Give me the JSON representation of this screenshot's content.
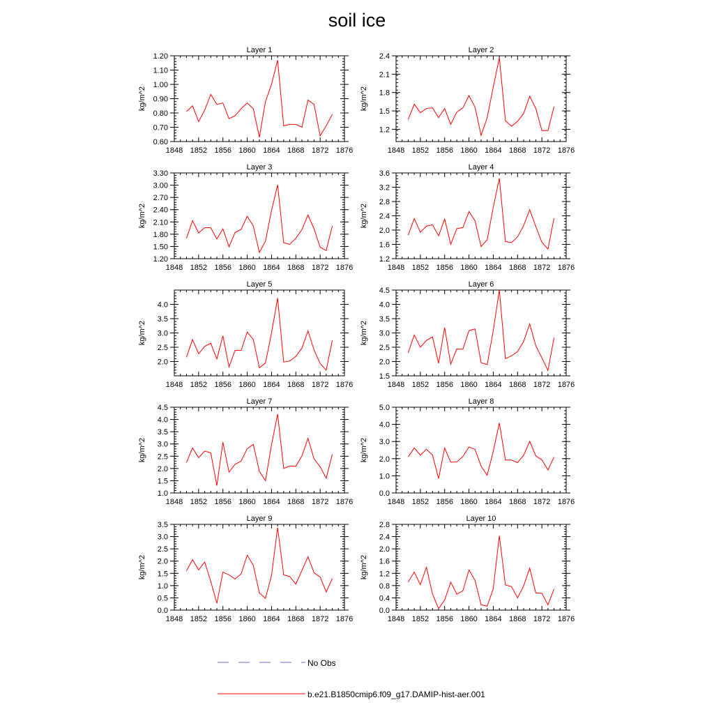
{
  "title": "soil ice",
  "legend": {
    "no_obs_label": "No Obs",
    "model_label": "b.e21.B1850cmip6.f09_g17.DAMIP-hist-aer.001",
    "no_obs_color": "#6a6acd",
    "model_color": "#ff0000"
  },
  "chart_data": [
    {
      "type": "line",
      "title": "Layer 1",
      "ylabel": "kg/m^2",
      "xlim": [
        1848,
        1876
      ],
      "ylim": [
        0.6,
        1.2
      ],
      "xticks": [
        "1848",
        "1852",
        "1856",
        "1860",
        "1864",
        "1868",
        "1872",
        "1876"
      ],
      "yticks": [
        "0.60",
        "0.70",
        "0.80",
        "0.90",
        "1.00",
        "1.10",
        "1.20"
      ],
      "x": [
        1850,
        1851,
        1852,
        1853,
        1854,
        1855,
        1856,
        1857,
        1858,
        1859,
        1860,
        1861,
        1862,
        1863,
        1864,
        1865,
        1866,
        1867,
        1868,
        1869,
        1870,
        1871,
        1872,
        1873,
        1874
      ],
      "series": [
        {
          "values": [
            0.81,
            0.85,
            0.74,
            0.82,
            0.93,
            0.86,
            0.87,
            0.76,
            0.78,
            0.83,
            0.87,
            0.83,
            0.63,
            0.88,
            1.0,
            1.17,
            0.71,
            0.72,
            0.72,
            0.7,
            0.89,
            0.86,
            0.64,
            0.71,
            0.79
          ]
        }
      ]
    },
    {
      "type": "line",
      "title": "Layer 2",
      "ylabel": "kg/m^2",
      "xlim": [
        1848,
        1876
      ],
      "ylim": [
        1.0,
        2.4
      ],
      "xticks": [
        "1848",
        "1852",
        "1856",
        "1860",
        "1864",
        "1868",
        "1872",
        "1876"
      ],
      "yticks": [
        "1.2",
        "1.5",
        "1.8",
        "2.1",
        "2.4"
      ],
      "yticks_values": [
        1.2,
        1.5,
        1.8,
        2.1,
        2.4
      ],
      "x": [
        1850,
        1851,
        1852,
        1853,
        1854,
        1855,
        1856,
        1857,
        1858,
        1859,
        1860,
        1861,
        1862,
        1863,
        1864,
        1865,
        1866,
        1867,
        1868,
        1869,
        1870,
        1871,
        1872,
        1873,
        1874
      ],
      "series": [
        {
          "values": [
            1.36,
            1.61,
            1.47,
            1.54,
            1.55,
            1.39,
            1.54,
            1.28,
            1.48,
            1.55,
            1.75,
            1.56,
            1.1,
            1.39,
            1.89,
            2.37,
            1.34,
            1.25,
            1.33,
            1.46,
            1.74,
            1.54,
            1.18,
            1.18,
            1.57
          ]
        }
      ]
    },
    {
      "type": "line",
      "title": "Layer 3",
      "ylabel": "kg/m^2",
      "xlim": [
        1848,
        1876
      ],
      "ylim": [
        1.2,
        3.3
      ],
      "xticks": [
        "1848",
        "1852",
        "1856",
        "1860",
        "1864",
        "1868",
        "1872",
        "1876"
      ],
      "yticks": [
        "1.20",
        "1.50",
        "1.80",
        "2.10",
        "2.40",
        "2.70",
        "3.00",
        "3.30"
      ],
      "x": [
        1850,
        1851,
        1852,
        1853,
        1854,
        1855,
        1856,
        1857,
        1858,
        1859,
        1860,
        1861,
        1862,
        1863,
        1864,
        1865,
        1866,
        1867,
        1868,
        1869,
        1870,
        1871,
        1872,
        1873,
        1874
      ],
      "series": [
        {
          "values": [
            1.7,
            2.13,
            1.83,
            1.96,
            1.96,
            1.68,
            1.93,
            1.49,
            1.84,
            1.92,
            2.24,
            2.0,
            1.35,
            1.63,
            2.38,
            3.01,
            1.59,
            1.55,
            1.7,
            1.91,
            2.27,
            1.93,
            1.48,
            1.4,
            2.0
          ]
        }
      ]
    },
    {
      "type": "line",
      "title": "Layer 4",
      "ylabel": "kg/m^2",
      "xlim": [
        1848,
        1876
      ],
      "ylim": [
        1.2,
        3.6
      ],
      "xticks": [
        "1848",
        "1852",
        "1856",
        "1860",
        "1864",
        "1868",
        "1872",
        "1876"
      ],
      "yticks": [
        "1.2",
        "1.6",
        "2.0",
        "2.4",
        "2.8",
        "3.2",
        "3.6"
      ],
      "x": [
        1850,
        1851,
        1852,
        1853,
        1854,
        1855,
        1856,
        1857,
        1858,
        1859,
        1860,
        1861,
        1862,
        1863,
        1864,
        1865,
        1866,
        1867,
        1868,
        1869,
        1870,
        1871,
        1872,
        1873,
        1874
      ],
      "series": [
        {
          "values": [
            1.86,
            2.32,
            1.94,
            2.11,
            2.15,
            1.84,
            2.31,
            1.6,
            2.04,
            2.07,
            2.52,
            2.26,
            1.54,
            1.73,
            2.64,
            3.45,
            1.68,
            1.65,
            1.81,
            2.13,
            2.57,
            2.1,
            1.66,
            1.47,
            2.33
          ]
        }
      ]
    },
    {
      "type": "line",
      "title": "Layer 5",
      "ylabel": "kg/m^2",
      "xlim": [
        1848,
        1876
      ],
      "ylim": [
        1.5,
        4.5
      ],
      "xticks": [
        "1848",
        "1852",
        "1856",
        "1860",
        "1864",
        "1868",
        "1872",
        "1876"
      ],
      "yticks": [
        "2.0",
        "2.5",
        "3.0",
        "3.5",
        "4.0"
      ],
      "yticks_values": [
        2.0,
        2.5,
        3.0,
        3.5,
        4.0
      ],
      "x": [
        1850,
        1851,
        1852,
        1853,
        1854,
        1855,
        1856,
        1857,
        1858,
        1859,
        1860,
        1861,
        1862,
        1863,
        1864,
        1865,
        1866,
        1867,
        1868,
        1869,
        1870,
        1871,
        1872,
        1873,
        1874
      ],
      "series": [
        {
          "values": [
            2.15,
            2.77,
            2.27,
            2.53,
            2.64,
            2.09,
            2.9,
            1.81,
            2.39,
            2.39,
            3.03,
            2.77,
            1.78,
            1.95,
            3.0,
            4.22,
            1.98,
            2.02,
            2.18,
            2.47,
            3.07,
            2.4,
            1.93,
            1.7,
            2.74
          ]
        }
      ]
    },
    {
      "type": "line",
      "title": "Layer 6",
      "ylabel": "kg/m^2",
      "xlim": [
        1848,
        1876
      ],
      "ylim": [
        1.5,
        4.5
      ],
      "xticks": [
        "1848",
        "1852",
        "1856",
        "1860",
        "1864",
        "1868",
        "1872",
        "1876"
      ],
      "yticks": [
        "1.5",
        "2.0",
        "2.5",
        "3.0",
        "3.5",
        "4.0",
        "4.5"
      ],
      "x": [
        1850,
        1851,
        1852,
        1853,
        1854,
        1855,
        1856,
        1857,
        1858,
        1859,
        1860,
        1861,
        1862,
        1863,
        1864,
        1865,
        1866,
        1867,
        1868,
        1869,
        1870,
        1871,
        1872,
        1873,
        1874
      ],
      "series": [
        {
          "values": [
            2.31,
            2.93,
            2.5,
            2.74,
            2.86,
            1.94,
            3.19,
            1.91,
            2.44,
            2.43,
            3.08,
            3.14,
            1.96,
            1.89,
            3.08,
            4.5,
            2.1,
            2.2,
            2.35,
            2.7,
            3.32,
            2.55,
            2.13,
            1.69,
            2.83
          ]
        }
      ]
    },
    {
      "type": "line",
      "title": "Layer 7",
      "ylabel": "kg/m^2",
      "xlim": [
        1848,
        1876
      ],
      "ylim": [
        1.0,
        4.5
      ],
      "xticks": [
        "1848",
        "1852",
        "1856",
        "1860",
        "1864",
        "1868",
        "1872",
        "1876"
      ],
      "yticks": [
        "1.0",
        "1.5",
        "2.0",
        "2.5",
        "3.0",
        "3.5",
        "4.0",
        "4.5"
      ],
      "x": [
        1850,
        1851,
        1852,
        1853,
        1854,
        1855,
        1856,
        1857,
        1858,
        1859,
        1860,
        1861,
        1862,
        1863,
        1864,
        1865,
        1866,
        1867,
        1868,
        1869,
        1870,
        1871,
        1872,
        1873,
        1874
      ],
      "series": [
        {
          "values": [
            2.24,
            2.84,
            2.44,
            2.71,
            2.64,
            1.3,
            3.07,
            1.85,
            2.17,
            2.3,
            2.81,
            2.98,
            1.88,
            1.5,
            2.97,
            4.22,
            2.0,
            2.1,
            2.09,
            2.51,
            3.23,
            2.39,
            2.07,
            1.6,
            2.58
          ]
        }
      ]
    },
    {
      "type": "line",
      "title": "Layer 8",
      "ylabel": "kg/m^2",
      "xlim": [
        1848,
        1876
      ],
      "ylim": [
        0.0,
        5.0
      ],
      "xticks": [
        "1848",
        "1852",
        "1856",
        "1860",
        "1864",
        "1868",
        "1872",
        "1876"
      ],
      "yticks": [
        "0.0",
        "1.0",
        "2.0",
        "3.0",
        "4.0",
        "5.0"
      ],
      "x": [
        1850,
        1851,
        1852,
        1853,
        1854,
        1855,
        1856,
        1857,
        1858,
        1859,
        1860,
        1861,
        1862,
        1863,
        1864,
        1865,
        1866,
        1867,
        1868,
        1869,
        1870,
        1871,
        1872,
        1873,
        1874
      ],
      "series": [
        {
          "values": [
            2.1,
            2.63,
            2.2,
            2.55,
            2.21,
            0.84,
            2.62,
            1.8,
            1.81,
            2.13,
            2.68,
            2.54,
            1.56,
            1.03,
            2.43,
            4.08,
            1.92,
            1.92,
            1.77,
            2.2,
            3.01,
            2.16,
            1.93,
            1.34,
            2.09
          ]
        }
      ]
    },
    {
      "type": "line",
      "title": "Layer 9",
      "ylabel": "kg/m^2",
      "xlim": [
        1848,
        1876
      ],
      "ylim": [
        0.0,
        3.5
      ],
      "xticks": [
        "1848",
        "1852",
        "1856",
        "1860",
        "1864",
        "1868",
        "1872",
        "1876"
      ],
      "yticks": [
        "0.0",
        "0.5",
        "1.0",
        "1.5",
        "2.0",
        "2.5",
        "3.0",
        "3.5"
      ],
      "x": [
        1850,
        1851,
        1852,
        1853,
        1854,
        1855,
        1856,
        1857,
        1858,
        1859,
        1860,
        1861,
        1862,
        1863,
        1864,
        1865,
        1866,
        1867,
        1868,
        1869,
        1870,
        1871,
        1872,
        1873,
        1874
      ],
      "series": [
        {
          "values": [
            1.6,
            2.06,
            1.64,
            1.96,
            1.17,
            0.28,
            1.55,
            1.44,
            1.27,
            1.48,
            2.24,
            1.83,
            0.7,
            0.48,
            1.41,
            3.37,
            1.44,
            1.37,
            1.06,
            1.62,
            2.18,
            1.52,
            1.35,
            0.74,
            1.29
          ]
        }
      ]
    },
    {
      "type": "line",
      "title": "Layer 10",
      "ylabel": "kg/m^2",
      "xlim": [
        1848,
        1876
      ],
      "ylim": [
        0.0,
        2.8
      ],
      "xticks": [
        "1848",
        "1852",
        "1856",
        "1860",
        "1864",
        "1868",
        "1872",
        "1876"
      ],
      "yticks": [
        "0.0",
        "0.4",
        "0.8",
        "1.2",
        "1.6",
        "2.0",
        "2.4",
        "2.8"
      ],
      "x": [
        1850,
        1851,
        1852,
        1853,
        1854,
        1855,
        1856,
        1857,
        1858,
        1859,
        1860,
        1861,
        1862,
        1863,
        1864,
        1865,
        1866,
        1867,
        1868,
        1869,
        1870,
        1871,
        1872,
        1873,
        1874
      ],
      "series": [
        {
          "values": [
            0.92,
            1.24,
            0.83,
            1.4,
            0.53,
            0.05,
            0.33,
            0.91,
            0.52,
            0.63,
            1.31,
            0.97,
            0.17,
            0.13,
            0.7,
            2.43,
            0.82,
            0.77,
            0.4,
            0.79,
            1.37,
            0.56,
            0.55,
            0.17,
            0.69
          ]
        }
      ]
    }
  ]
}
